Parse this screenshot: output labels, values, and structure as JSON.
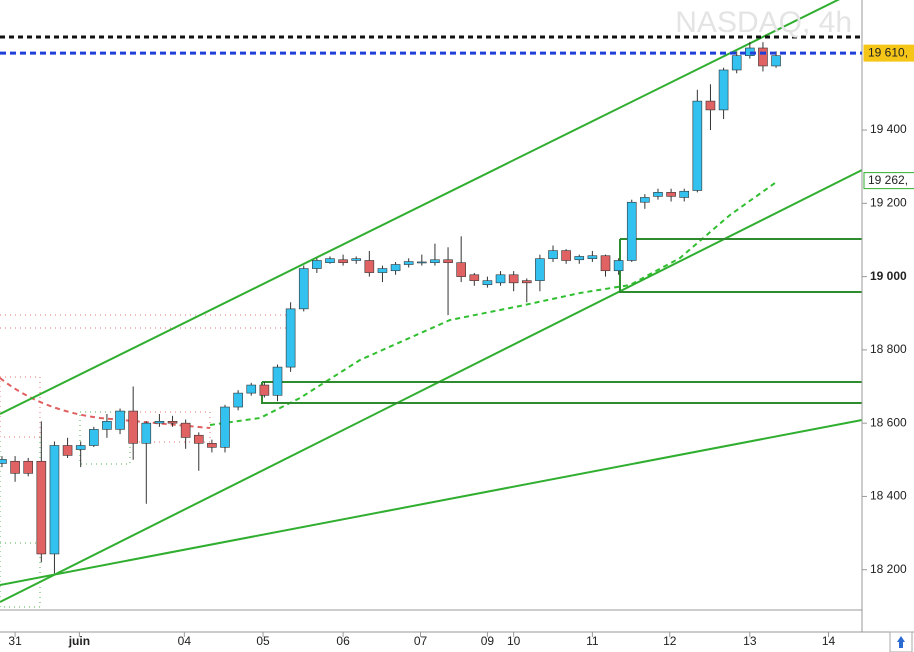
{
  "chart_data": {
    "type": "candlestick",
    "title": "NASDAQ, 4h",
    "open": [
      18490,
      18496,
      18496,
      18496,
      18243,
      18539,
      18528,
      18539,
      18583,
      18583,
      18633,
      18545,
      18600,
      18605,
      18600,
      18567,
      18545,
      18534,
      18644,
      18682,
      18704,
      18676,
      18753,
      18912,
      19022,
      19038,
      19046,
      19044,
      19044,
      19011,
      19016,
      19033,
      19038,
      19038,
      19046,
      19038,
      19005,
      18978,
      18983,
      19005,
      18989,
      18989,
      19049,
      19071,
      19046,
      19049,
      19057,
      19016,
      19044,
      19203,
      19219,
      19230,
      19216,
      19235,
      19479,
      19455,
      19564,
      19603,
      19624,
      19575
    ],
    "high": [
      18510,
      18510,
      18505,
      18605,
      18550,
      18560,
      18550,
      18590,
      18625,
      18640,
      18700,
      18605,
      18625,
      18620,
      18610,
      18575,
      18555,
      18650,
      18690,
      18710,
      18712,
      18760,
      18930,
      19030,
      19050,
      19055,
      19060,
      19055,
      19070,
      19030,
      19040,
      19050,
      19060,
      19090,
      19080,
      19110,
      19010,
      19000,
      19015,
      19015,
      18995,
      19060,
      19085,
      19075,
      19060,
      19070,
      19060,
      19050,
      19210,
      19225,
      19240,
      19240,
      19240,
      19510,
      19525,
      19570,
      19615,
      19640,
      19640,
      19615
    ],
    "low": [
      18480,
      18440,
      18455,
      18220,
      18190,
      18505,
      18480,
      18535,
      18560,
      18570,
      18500,
      18380,
      18590,
      18590,
      18530,
      18470,
      18520,
      18520,
      18635,
      18675,
      18670,
      18660,
      18740,
      18905,
      19010,
      19035,
      19030,
      19035,
      19000,
      18985,
      19005,
      19025,
      19030,
      19030,
      18895,
      18985,
      18975,
      18970,
      18975,
      18960,
      18930,
      18960,
      19040,
      19035,
      19035,
      19040,
      19000,
      19005,
      19040,
      19185,
      19210,
      19205,
      19205,
      19230,
      19400,
      19430,
      19555,
      19595,
      19560,
      19570
    ],
    "close": [
      18501,
      18463,
      18463,
      18243,
      18539,
      18512,
      18539,
      18583,
      18605,
      18633,
      18545,
      18600,
      18605,
      18600,
      18561,
      18545,
      18534,
      18644,
      18682,
      18704,
      18676,
      18753,
      18912,
      19022,
      19044,
      19049,
      19038,
      19049,
      19011,
      19022,
      19033,
      19041,
      19040,
      19046,
      19038,
      19000,
      18989,
      18989,
      19005,
      18983,
      18983,
      19049,
      19071,
      19044,
      19055,
      19057,
      19016,
      19044,
      19203,
      19216,
      19230,
      19219,
      19233,
      19479,
      19455,
      19564,
      19603,
      19624,
      19575,
      19603
    ],
    "up_color": "#33c1f0",
    "down_color": "#e06262",
    "xlim": [
      -0.15,
      65.55
    ],
    "xticks": [
      {
        "value": 1,
        "label": "31"
      },
      {
        "value": 5.9,
        "label": "juin"
      },
      {
        "value": 13.9,
        "label": "04"
      },
      {
        "value": 19.9,
        "label": "05"
      },
      {
        "value": 26,
        "label": "06"
      },
      {
        "value": 31.9,
        "label": "07"
      },
      {
        "value": 37,
        "label": "09"
      },
      {
        "value": 39,
        "label": "10"
      },
      {
        "value": 45,
        "label": "11"
      },
      {
        "value": 50.9,
        "label": "12"
      },
      {
        "value": 57,
        "label": "13"
      },
      {
        "value": 63,
        "label": "14"
      }
    ],
    "ylim": [
      18090,
      19755
    ],
    "yticks": [
      {
        "value": 18200,
        "label": "18 200"
      },
      {
        "value": 18400,
        "label": "18 400"
      },
      {
        "value": 18600,
        "label": "18 600"
      },
      {
        "value": 18800,
        "label": "18 800"
      },
      {
        "value": 19000,
        "label": "19 000"
      },
      {
        "value": 19200,
        "label": "19 200"
      },
      {
        "value": 19400,
        "label": "19 400"
      }
    ],
    "price_labels": [
      {
        "value": 19610,
        "label": "19 610,",
        "color": "#f5c518"
      },
      {
        "value": 19262,
        "label": "19 262,",
        "color": "#2fae2f"
      }
    ]
  }
}
